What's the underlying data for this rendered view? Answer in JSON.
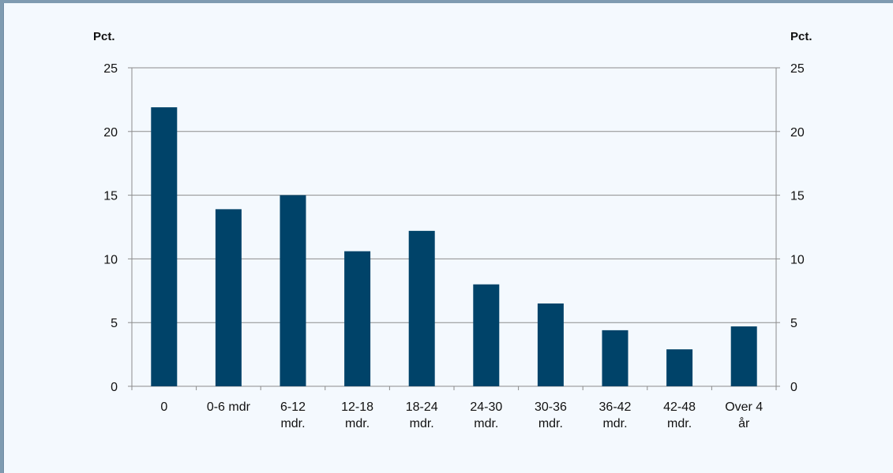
{
  "chart_data": {
    "type": "bar",
    "title": "",
    "xlabel": "",
    "ylabel_left": "Pct.",
    "ylabel_right": "Pct.",
    "categories": [
      [
        "0"
      ],
      [
        "0-6 mdr"
      ],
      [
        "6-12",
        "mdr."
      ],
      [
        "12-18",
        "mdr."
      ],
      [
        "18-24",
        "mdr."
      ],
      [
        "24-30",
        "mdr."
      ],
      [
        "30-36",
        "mdr."
      ],
      [
        "36-42",
        "mdr."
      ],
      [
        "42-48",
        "mdr."
      ],
      [
        "Over 4",
        "år"
      ]
    ],
    "values": [
      21.9,
      13.9,
      15.0,
      10.6,
      12.2,
      8.0,
      6.5,
      4.4,
      2.9,
      4.7
    ],
    "ylim": [
      0,
      25
    ],
    "yticks": [
      0,
      5,
      10,
      15,
      20,
      25
    ],
    "grid": true,
    "legend": "none",
    "bar_color": "#004369"
  }
}
